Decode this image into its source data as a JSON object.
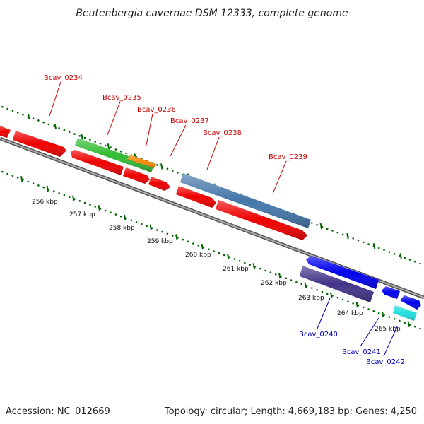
{
  "title": "Beutenbergia cavernae DSM 12333, complete genome",
  "footer": {
    "accession": "Accession: NC_012669",
    "summary": "Topology: circular; Length: 4,669,183 bp; Genes: 4,250"
  },
  "colors": {
    "red": "#ee0000",
    "green": "#33bb33",
    "orange": "#ff8800",
    "steelblue": "#4477aa",
    "blue": "#0000ee",
    "slate": "#443388",
    "cyan": "#22dddd",
    "tick": "#006600",
    "backbone": "#777777"
  },
  "scale": [
    "256 kbp",
    "257 kbp",
    "258 kbp",
    "259 kbp",
    "260 kbp",
    "261 kbp",
    "262 kbp",
    "263 kbp",
    "264 kbp",
    "265 kbp"
  ],
  "gene_labels_top": [
    "Bcav_0234",
    "Bcav_0235",
    "Bcav_0236",
    "Bcav_0237",
    "Bcav_0238",
    "Bcav_0239"
  ],
  "gene_labels_bottom": [
    "Bcav_0240",
    "Bcav_0241",
    "Bcav_0242"
  ]
}
